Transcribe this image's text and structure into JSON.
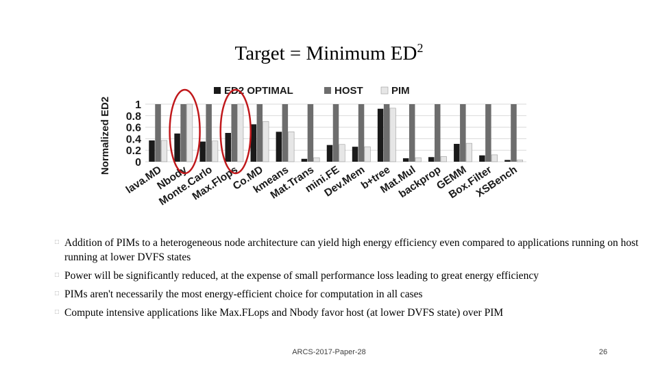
{
  "slide": {
    "title_main": "Target = Minimum ED",
    "title_sup": "2",
    "bullets": [
      "Addition of PIMs to a heterogeneous node architecture can yield high energy efficiency even compared to applications running on host running at lower DVFS states",
      "Power will be significantly reduced, at the expense of small performance loss leading to great energy efficiency",
      "PIMs aren't necessarily the most energy-efficient choice for computation in all cases",
      "Compute intensive applications like Max.FLops and Nbody favor host (at lower DVFS state) over PIM"
    ],
    "footer_text": "ARCS-2017-Paper-28",
    "page_number": "26"
  },
  "colors": {
    "ed2_optimal": "#1a1a1a",
    "host": "#6d6d6d",
    "pim": "#e6e6e6",
    "highlight_circle": "#c0181b",
    "grid": "#d9d9d9"
  },
  "chart_data": {
    "type": "bar",
    "ylabel": "Normalized ED2",
    "xlabel": "",
    "ylim": [
      0,
      1
    ],
    "yticks": [
      "0",
      "0.2",
      "0.4",
      "0.6",
      "0.8",
      "1"
    ],
    "categories": [
      "lava.MD",
      "Nbody",
      "Monte.Carlo",
      "Max.Flops",
      "Co.MD",
      "kmeans",
      "Mat.Trans",
      "mini.FE",
      "Dev.Mem",
      "b+tree",
      "Mat.Mul",
      "backprop",
      "GEMM",
      "Box.Filter",
      "XSBench"
    ],
    "series": [
      {
        "name": "ED2 OPTIMAL",
        "values": [
          0.37,
          0.49,
          0.35,
          0.5,
          0.65,
          0.52,
          0.05,
          0.29,
          0.26,
          0.92,
          0.06,
          0.08,
          0.31,
          0.11,
          0.03
        ]
      },
      {
        "name": "HOST",
        "values": [
          1,
          1,
          1,
          1,
          1,
          1,
          1,
          1,
          1,
          1,
          1,
          1,
          1,
          1,
          1
        ]
      },
      {
        "name": "PIM",
        "values": [
          0.37,
          1.0,
          0.36,
          1.0,
          0.7,
          0.52,
          0.07,
          0.3,
          0.26,
          0.93,
          0.07,
          0.09,
          0.32,
          0.12,
          0.03
        ]
      }
    ],
    "legend_position": "top",
    "grid": true,
    "highlighted_categories": [
      "Nbody",
      "Max.Flops"
    ]
  }
}
